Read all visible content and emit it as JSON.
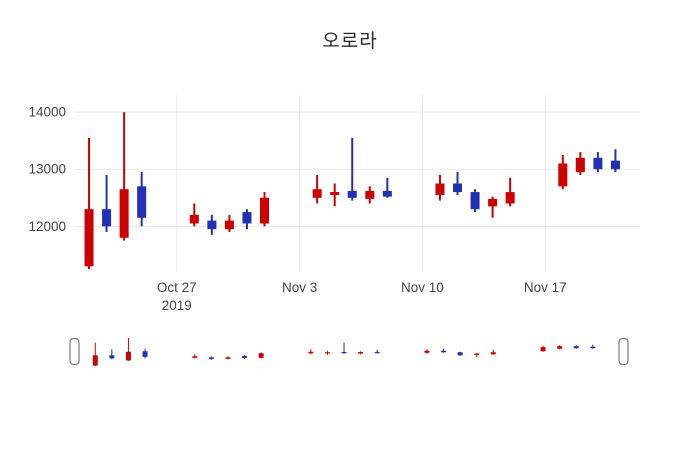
{
  "title": "오로라",
  "chart_data": {
    "type": "candlestick",
    "title": "오로라",
    "increasing_color": "#cc0000",
    "decreasing_color": "#2130b4",
    "grid_color": "#e9e9e9",
    "tick_label_color": "#444444",
    "legend_position": "none",
    "grid": true,
    "rangeslider": true,
    "y_axis": {
      "ticks": [
        12000,
        13000,
        14000
      ],
      "range": [
        11200,
        14300
      ]
    },
    "x_axis": {
      "range_days": [
        0.2,
        32.4
      ],
      "ticks": [
        {
          "label": "Oct 27",
          "sublabel": "2019",
          "day": 6
        },
        {
          "label": "Nov 3",
          "sublabel": "",
          "day": 13
        },
        {
          "label": "Nov 10",
          "sublabel": "",
          "day": 20
        },
        {
          "label": "Nov 17",
          "sublabel": "",
          "day": 27
        }
      ]
    },
    "candles": [
      {
        "date": "Oct 22",
        "day": 1,
        "open": 11300,
        "high": 13550,
        "low": 11250,
        "close": 12300
      },
      {
        "date": "Oct 23",
        "day": 2,
        "open": 12300,
        "high": 12900,
        "low": 11900,
        "close": 12000
      },
      {
        "date": "Oct 24",
        "day": 3,
        "open": 11800,
        "high": 14000,
        "low": 11750,
        "close": 12650
      },
      {
        "date": "Oct 25",
        "day": 4,
        "open": 12700,
        "high": 12950,
        "low": 12000,
        "close": 12150
      },
      {
        "date": "Oct 28",
        "day": 7,
        "open": 12050,
        "high": 12400,
        "low": 12000,
        "close": 12200
      },
      {
        "date": "Oct 29",
        "day": 8,
        "open": 12100,
        "high": 12200,
        "low": 11850,
        "close": 11950
      },
      {
        "date": "Oct 30",
        "day": 9,
        "open": 11950,
        "high": 12200,
        "low": 11900,
        "close": 12100
      },
      {
        "date": "Oct 31",
        "day": 10,
        "open": 12250,
        "high": 12300,
        "low": 11950,
        "close": 12050
      },
      {
        "date": "Nov 1",
        "day": 11,
        "open": 12050,
        "high": 12600,
        "low": 12000,
        "close": 12500
      },
      {
        "date": "Nov 4",
        "day": 14,
        "open": 12500,
        "high": 12900,
        "low": 12400,
        "close": 12650
      },
      {
        "date": "Nov 5",
        "day": 15,
        "open": 12550,
        "high": 12750,
        "low": 12350,
        "close": 12600
      },
      {
        "date": "Nov 6",
        "day": 16,
        "open": 12620,
        "high": 13550,
        "low": 12450,
        "close": 12500
      },
      {
        "date": "Nov 7",
        "day": 17,
        "open": 12480,
        "high": 12700,
        "low": 12400,
        "close": 12620
      },
      {
        "date": "Nov 8",
        "day": 18,
        "open": 12620,
        "high": 12850,
        "low": 12500,
        "close": 12520
      },
      {
        "date": "Nov 11",
        "day": 21,
        "open": 12550,
        "high": 12900,
        "low": 12450,
        "close": 12750
      },
      {
        "date": "Nov 12",
        "day": 22,
        "open": 12750,
        "high": 12950,
        "low": 12550,
        "close": 12600
      },
      {
        "date": "Nov 13",
        "day": 23,
        "open": 12600,
        "high": 12650,
        "low": 12250,
        "close": 12300
      },
      {
        "date": "Nov 14",
        "day": 24,
        "open": 12350,
        "high": 12520,
        "low": 12150,
        "close": 12480
      },
      {
        "date": "Nov 15",
        "day": 25,
        "open": 12400,
        "high": 12850,
        "low": 12350,
        "close": 12600
      },
      {
        "date": "Nov 18",
        "day": 28,
        "open": 12700,
        "high": 13250,
        "low": 12650,
        "close": 13100
      },
      {
        "date": "Nov 19",
        "day": 29,
        "open": 12950,
        "high": 13300,
        "low": 12900,
        "close": 13200
      },
      {
        "date": "Nov 20",
        "day": 30,
        "open": 13200,
        "high": 13300,
        "low": 12950,
        "close": 13000
      },
      {
        "date": "Nov 21",
        "day": 31,
        "open": 13150,
        "high": 13350,
        "low": 12950,
        "close": 13000
      }
    ]
  }
}
